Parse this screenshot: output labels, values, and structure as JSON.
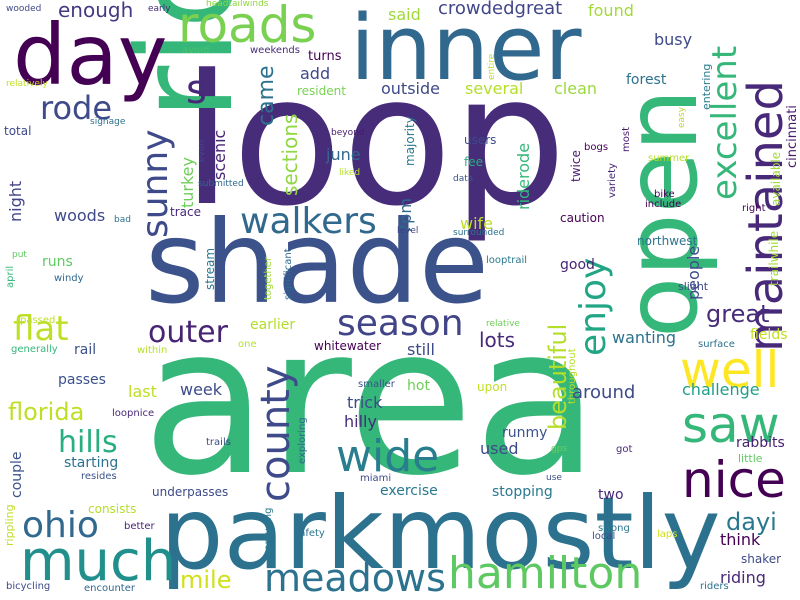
{
  "words": [
    {
      "text": "area",
      "color": "#35b779"
    },
    {
      "text": "loop",
      "color": "#472c7a"
    },
    {
      "text": "shade",
      "color": "#3b528b"
    },
    {
      "text": "parkmostly",
      "color": "#2c728e"
    },
    {
      "text": "ride",
      "color": "#35b779"
    },
    {
      "text": "inner",
      "color": "#31688e"
    },
    {
      "text": "day",
      "color": "#440154"
    },
    {
      "text": "open",
      "color": "#35b779"
    },
    {
      "text": "maintained",
      "color": "#482878"
    },
    {
      "text": "much",
      "color": "#21908d"
    },
    {
      "text": "meadows",
      "color": "#2c728e"
    },
    {
      "text": "hamilton",
      "color": "#5ec962"
    },
    {
      "text": "roads",
      "color": "#7ad151"
    },
    {
      "text": "nice",
      "color": "#440154"
    },
    {
      "text": "well",
      "color": "#fde725"
    },
    {
      "text": "saw",
      "color": "#35b779"
    },
    {
      "text": "wide",
      "color": "#287d8e"
    },
    {
      "text": "county",
      "color": "#3e4a89"
    },
    {
      "text": "walkers",
      "color": "#31688e"
    },
    {
      "text": "ohio",
      "color": "#31688e"
    },
    {
      "text": "season",
      "color": "#414487"
    },
    {
      "text": "sunny",
      "color": "#3e4a89"
    },
    {
      "text": "enjoy",
      "color": "#21a585"
    },
    {
      "text": "excellent",
      "color": "#35b779"
    },
    {
      "text": "rode",
      "color": "#3e4a89"
    },
    {
      "text": "flat",
      "color": "#bddf26"
    },
    {
      "text": "outer",
      "color": "#482475"
    },
    {
      "text": "hills",
      "color": "#29af7f"
    },
    {
      "text": "mile",
      "color": "#d0e11c"
    },
    {
      "text": "florida",
      "color": "#bddf26"
    },
    {
      "text": "beautiful",
      "color": "#b5de2b"
    },
    {
      "text": "great",
      "color": "#472c7a"
    },
    {
      "text": "dayi",
      "color": "#2a788e"
    },
    {
      "text": "s",
      "color": "#482878"
    },
    {
      "text": "enough",
      "color": "#443983"
    },
    {
      "text": "crowdedgreat",
      "color": "#404688"
    },
    {
      "text": "said",
      "color": "#a0da39"
    },
    {
      "text": "found",
      "color": "#a2da37"
    },
    {
      "text": "busy",
      "color": "#3e4989"
    },
    {
      "text": "came",
      "color": "#2c728e"
    },
    {
      "text": "add",
      "color": "#3f4889"
    },
    {
      "text": "outside",
      "color": "#3e4a89"
    },
    {
      "text": "clean",
      "color": "#9bd93c"
    },
    {
      "text": "several",
      "color": "#b5de2b"
    },
    {
      "text": "resident",
      "color": "#79d151"
    },
    {
      "text": "turns",
      "color": "#440154"
    },
    {
      "text": "weekends",
      "color": "#472c7a"
    },
    {
      "text": "avoid",
      "color": "#4ac16d"
    },
    {
      "text": "forest",
      "color": "#2c728e"
    },
    {
      "text": "entering",
      "color": "#287d8e"
    },
    {
      "text": "cincinnati",
      "color": "#481a6c"
    },
    {
      "text": "sections",
      "color": "#90d743"
    },
    {
      "text": "scenic",
      "color": "#482475"
    },
    {
      "text": "turkey",
      "color": "#6ece58"
    },
    {
      "text": "june",
      "color": "#31688e"
    },
    {
      "text": "majority",
      "color": "#2a788e"
    },
    {
      "text": "riderode",
      "color": "#35b779"
    },
    {
      "text": "users",
      "color": "#3e4a89"
    },
    {
      "text": "fee",
      "color": "#29af7f"
    },
    {
      "text": "twice",
      "color": "#481f70"
    },
    {
      "text": "bogs",
      "color": "#440154"
    },
    {
      "text": "summer",
      "color": "#b5de2b"
    },
    {
      "text": "beyond",
      "color": "#481a6c"
    },
    {
      "text": "liked",
      "color": "#b5de2b"
    },
    {
      "text": "data",
      "color": "#3b528b"
    },
    {
      "text": "submitted",
      "color": "#31688e"
    },
    {
      "text": "woods",
      "color": "#3e4a89"
    },
    {
      "text": "night",
      "color": "#414487"
    },
    {
      "text": "trace",
      "color": "#482878"
    },
    {
      "text": "wife",
      "color": "#bddf26"
    },
    {
      "text": "caution",
      "color": "#440154"
    },
    {
      "text": "7pm",
      "color": "#31688e"
    },
    {
      "text": "surrounded",
      "color": "#2c728e"
    },
    {
      "text": "level",
      "color": "#414487"
    },
    {
      "text": "people",
      "color": "#3e4a89"
    },
    {
      "text": "northwest",
      "color": "#2c728e"
    },
    {
      "text": "bike",
      "color": "#440154"
    },
    {
      "text": "include",
      "color": "#440154"
    },
    {
      "text": "right",
      "color": "#440154"
    },
    {
      "text": "trailwhile",
      "color": "#a0da39"
    },
    {
      "text": "available",
      "color": "#a0da39"
    },
    {
      "text": "variety",
      "color": "#482878"
    },
    {
      "text": "most",
      "color": "#481a6c"
    },
    {
      "text": "slight",
      "color": "#3e4a89"
    },
    {
      "text": "good",
      "color": "#482475"
    },
    {
      "text": "runs",
      "color": "#5ec962"
    },
    {
      "text": "stream",
      "color": "#2a788e"
    },
    {
      "text": "significant",
      "color": "#31688e"
    },
    {
      "text": "together",
      "color": "#a0da39"
    },
    {
      "text": "windy",
      "color": "#31688e"
    },
    {
      "text": "april",
      "color": "#35b779"
    },
    {
      "text": "put",
      "color": "#5ec962"
    },
    {
      "text": "looptrail",
      "color": "#2a788e"
    },
    {
      "text": "relative",
      "color": "#6ece58"
    },
    {
      "text": "throughout",
      "color": "#b5de2b"
    },
    {
      "text": "surface",
      "color": "#2c728e"
    },
    {
      "text": "earlier",
      "color": "#b5de2b"
    },
    {
      "text": "passed",
      "color": "#bddf26"
    },
    {
      "text": "one",
      "color": "#b5de2b"
    },
    {
      "text": "within",
      "color": "#b5de2b"
    },
    {
      "text": "generally",
      "color": "#35b779"
    },
    {
      "text": "rail",
      "color": "#3b528b"
    },
    {
      "text": "whitewater",
      "color": "#440154"
    },
    {
      "text": "still",
      "color": "#3e4a89"
    },
    {
      "text": "lots",
      "color": "#482878"
    },
    {
      "text": "wanting",
      "color": "#2c728e"
    },
    {
      "text": "fields",
      "color": "#c2df23"
    },
    {
      "text": "passes",
      "color": "#3b528b"
    },
    {
      "text": "last",
      "color": "#bddf26"
    },
    {
      "text": "week",
      "color": "#3e4a89"
    },
    {
      "text": "smaller",
      "color": "#3b528b"
    },
    {
      "text": "hot",
      "color": "#6ece58"
    },
    {
      "text": "upon",
      "color": "#c2df23"
    },
    {
      "text": "around",
      "color": "#3e4a89"
    },
    {
      "text": "challenge",
      "color": "#1f9e89"
    },
    {
      "text": "loopnice",
      "color": "#482878"
    },
    {
      "text": "trick",
      "color": "#3e4a89"
    },
    {
      "text": "hilly",
      "color": "#472c7a"
    },
    {
      "text": "rabbits",
      "color": "#481f70"
    },
    {
      "text": "little",
      "color": "#5ec962"
    },
    {
      "text": "couple",
      "color": "#3b528b"
    },
    {
      "text": "runmy",
      "color": "#3b528b"
    },
    {
      "text": "trails",
      "color": "#3e4a89"
    },
    {
      "text": "exploring",
      "color": "#31688e"
    },
    {
      "text": "used",
      "color": "#3e4a89"
    },
    {
      "text": "gps",
      "color": "#6ece58"
    },
    {
      "text": "got",
      "color": "#482878"
    },
    {
      "text": "starting",
      "color": "#2c728e"
    },
    {
      "text": "resides",
      "color": "#3b528b"
    },
    {
      "text": "miami",
      "color": "#3e4a89"
    },
    {
      "text": "exercise",
      "color": "#2a788e"
    },
    {
      "text": "stopping",
      "color": "#2a788e"
    },
    {
      "text": "use",
      "color": "#3b528b"
    },
    {
      "text": "underpasses",
      "color": "#3e4a89"
    },
    {
      "text": "two",
      "color": "#482878"
    },
    {
      "text": "consists",
      "color": "#b5de2b"
    },
    {
      "text": "rippling",
      "color": "#bddf26"
    },
    {
      "text": "better",
      "color": "#482475"
    },
    {
      "text": "safety",
      "color": "#2c728e"
    },
    {
      "text": "confusing",
      "color": "#2a788e"
    },
    {
      "text": "strong",
      "color": "#2a788e"
    },
    {
      "text": "local",
      "color": "#3e4a89"
    },
    {
      "text": "laps",
      "color": "#d0e11c"
    },
    {
      "text": "think",
      "color": "#440154"
    },
    {
      "text": "shaker",
      "color": "#3e4a89"
    },
    {
      "text": "riding",
      "color": "#482878"
    },
    {
      "text": "encounter",
      "color": "#31688e"
    },
    {
      "text": "riders",
      "color": "#2c728e"
    },
    {
      "text": "bicycling",
      "color": "#3e4a89"
    },
    {
      "text": "wooded",
      "color": "#3e4a89"
    },
    {
      "text": "early",
      "color": "#472c7a"
    },
    {
      "text": "headtailwinds",
      "color": "#90d743"
    },
    {
      "text": "relatively",
      "color": "#c2df23"
    },
    {
      "text": "total",
      "color": "#3e4a89"
    },
    {
      "text": "signage",
      "color": "#2c728e"
    },
    {
      "text": "even",
      "color": "#3e4a89"
    },
    {
      "text": "entire",
      "color": "#b5de2b"
    },
    {
      "text": "easy",
      "color": "#b5de2b"
    },
    {
      "text": "bad",
      "color": "#2c728e"
    }
  ]
}
